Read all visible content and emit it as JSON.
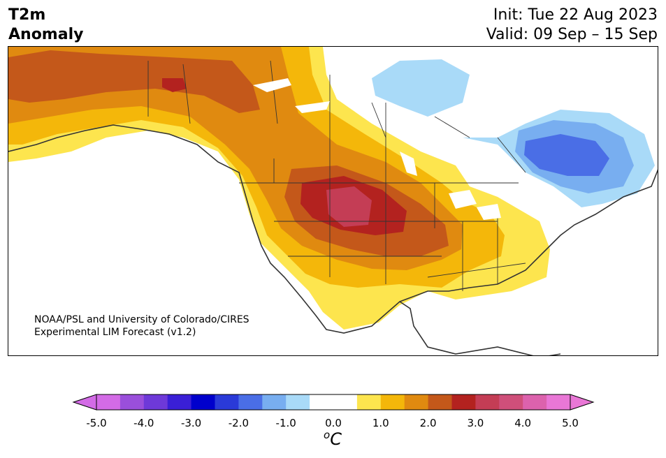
{
  "title": {
    "left_line1": "T2m",
    "left_line2": "Anomaly",
    "init": "Init: Tue 22 Aug 2023",
    "valid": "Valid: 09 Sep – 15 Sep"
  },
  "credit": {
    "line1": "NOAA/PSL and University of Colorado/CIRES",
    "line2": "Experimental LIM Forecast (v1.2)"
  },
  "colorbar": {
    "unit_base": "C",
    "unit_sup": "o",
    "tick_labels": [
      "-5.0",
      "-4.0",
      "-3.0",
      "-2.0",
      "-1.0",
      "0.0",
      "1.0",
      "2.0",
      "3.0",
      "4.0",
      "5.0"
    ],
    "colors": [
      "#d36be6",
      "#9a4fdb",
      "#6e39d8",
      "#3a1fd6",
      "#0000cc",
      "#2a3ad8",
      "#4a6ee6",
      "#78aef0",
      "#a9daf8",
      "#ffffff",
      "#ffffff",
      "#fde54e",
      "#f4b70a",
      "#e08a10",
      "#c4581a",
      "#b3221f",
      "#c43d55",
      "#cf4f7a",
      "#dc62ad",
      "#e977d6"
    ],
    "under_color": "#d36be6",
    "over_color": "#e977d6"
  },
  "map": {
    "colors": {
      "land_outline": "#333333",
      "neutral": "#ffffff",
      "light_blue": "#a9daf8",
      "mid_blue": "#78aef0",
      "blue": "#4a6ee6",
      "yellow": "#fde54e",
      "gold": "#f4b70a",
      "orange": "#e08a10",
      "dark_orange": "#c4581a",
      "red": "#b3221f",
      "rose": "#c43d55"
    }
  }
}
